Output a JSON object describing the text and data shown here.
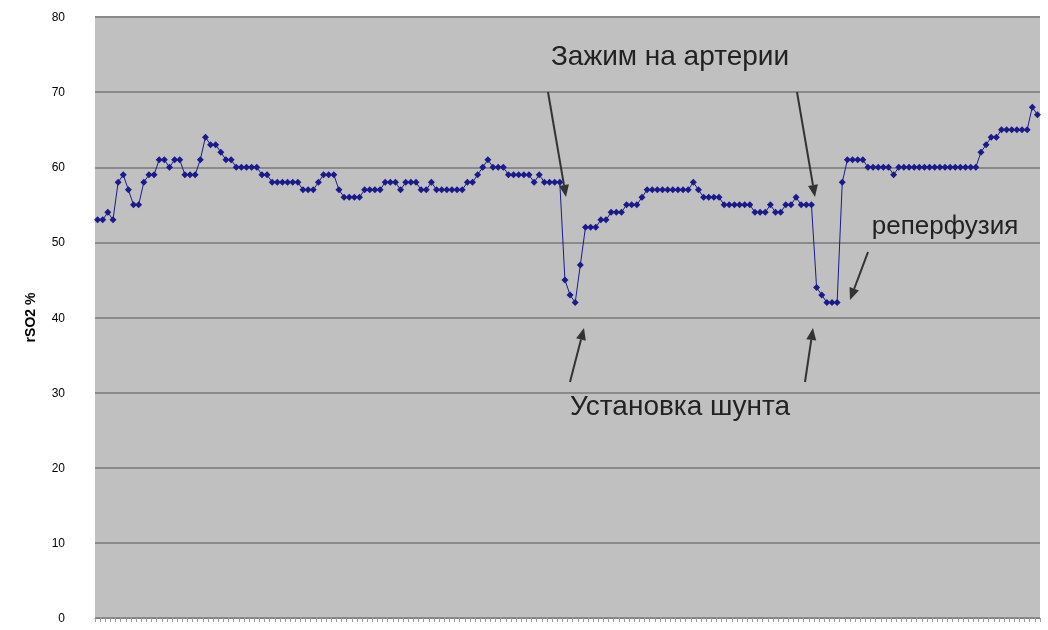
{
  "chart_data": {
    "type": "line",
    "ylabel": "rSO2 %",
    "annotations": [
      "Зажим на артерии",
      "Установка шунта",
      "реперфузия"
    ],
    "categories": [
      null,
      null,
      null,
      null,
      null,
      null,
      null,
      null,
      null,
      null,
      null,
      null,
      null,
      null,
      null,
      null,
      null,
      null,
      null,
      null,
      null,
      null,
      null,
      null,
      null,
      null,
      null,
      null,
      null,
      null,
      null,
      null,
      null,
      null,
      null,
      null,
      null,
      null,
      null,
      null,
      null,
      null,
      null,
      null,
      null,
      null,
      null,
      null,
      null,
      null,
      null,
      null,
      null,
      null,
      null,
      null,
      null,
      null,
      null,
      null,
      null,
      null,
      null,
      null,
      null,
      null,
      null,
      null,
      null,
      null,
      null,
      null,
      null,
      null,
      null,
      null,
      null,
      null,
      null,
      null,
      null,
      null,
      null,
      null,
      null,
      null,
      null,
      null,
      null,
      null,
      null,
      null,
      null,
      null,
      null,
      null,
      null,
      null,
      null,
      null,
      null,
      null,
      null,
      null,
      null,
      null,
      null,
      null,
      null,
      null,
      null,
      null,
      null,
      null,
      null,
      null,
      null,
      null,
      null,
      null,
      null,
      null,
      null,
      null,
      null,
      null,
      null,
      null,
      null,
      null,
      null,
      null,
      null,
      null,
      null,
      null,
      null,
      null,
      null,
      null,
      null,
      null,
      null,
      null,
      null,
      null,
      null,
      null,
      null,
      null,
      null,
      null,
      null,
      null,
      null,
      null,
      null,
      null,
      null,
      null,
      null,
      null,
      null,
      null,
      null,
      null,
      null,
      null,
      null,
      null,
      null,
      null,
      null,
      null,
      null,
      null,
      null,
      null,
      null,
      null,
      null,
      null,
      null,
      null
    ],
    "series": [
      {
        "color": "#1a1a8c",
        "values": [
          53,
          53,
          54,
          53,
          58,
          59,
          57,
          55,
          55,
          58,
          59,
          59,
          61,
          61,
          60,
          61,
          61,
          59,
          59,
          59,
          61,
          64,
          63,
          63,
          62,
          61,
          61,
          60,
          60,
          60,
          60,
          60,
          59,
          59,
          58,
          58,
          58,
          58,
          58,
          58,
          57,
          57,
          57,
          58,
          59,
          59,
          59,
          57,
          56,
          56,
          56,
          56,
          57,
          57,
          57,
          57,
          58,
          58,
          58,
          57,
          58,
          58,
          58,
          57,
          57,
          58,
          57,
          57,
          57,
          57,
          57,
          57,
          58,
          58,
          59,
          60,
          61,
          60,
          60,
          60,
          59,
          59,
          59,
          59,
          59,
          58,
          59,
          58,
          58,
          58,
          58,
          45,
          43,
          42,
          47,
          52,
          52,
          52,
          53,
          53,
          54,
          54,
          54,
          55,
          55,
          55,
          56,
          57,
          57,
          57,
          57,
          57,
          57,
          57,
          57,
          57,
          58,
          57,
          56,
          56,
          56,
          56,
          55,
          55,
          55,
          55,
          55,
          55,
          54,
          54,
          54,
          55,
          54,
          54,
          55,
          55,
          56,
          55,
          55,
          55,
          44,
          43,
          42,
          42,
          42,
          58,
          61,
          61,
          61,
          61,
          60,
          60,
          60,
          60,
          60,
          59,
          60,
          60,
          60,
          60,
          60,
          60,
          60,
          60,
          60,
          60,
          60,
          60,
          60,
          60,
          60,
          60,
          62,
          63,
          64,
          64,
          65,
          65,
          65,
          65,
          65,
          65,
          68,
          67
        ]
      }
    ],
    "ylim": [
      0,
      80
    ],
    "yticks": [
      0,
      10,
      20,
      30,
      40,
      50,
      60,
      70,
      80
    ],
    "grid": "y",
    "marker": "diamond",
    "tick_labels": "y"
  }
}
